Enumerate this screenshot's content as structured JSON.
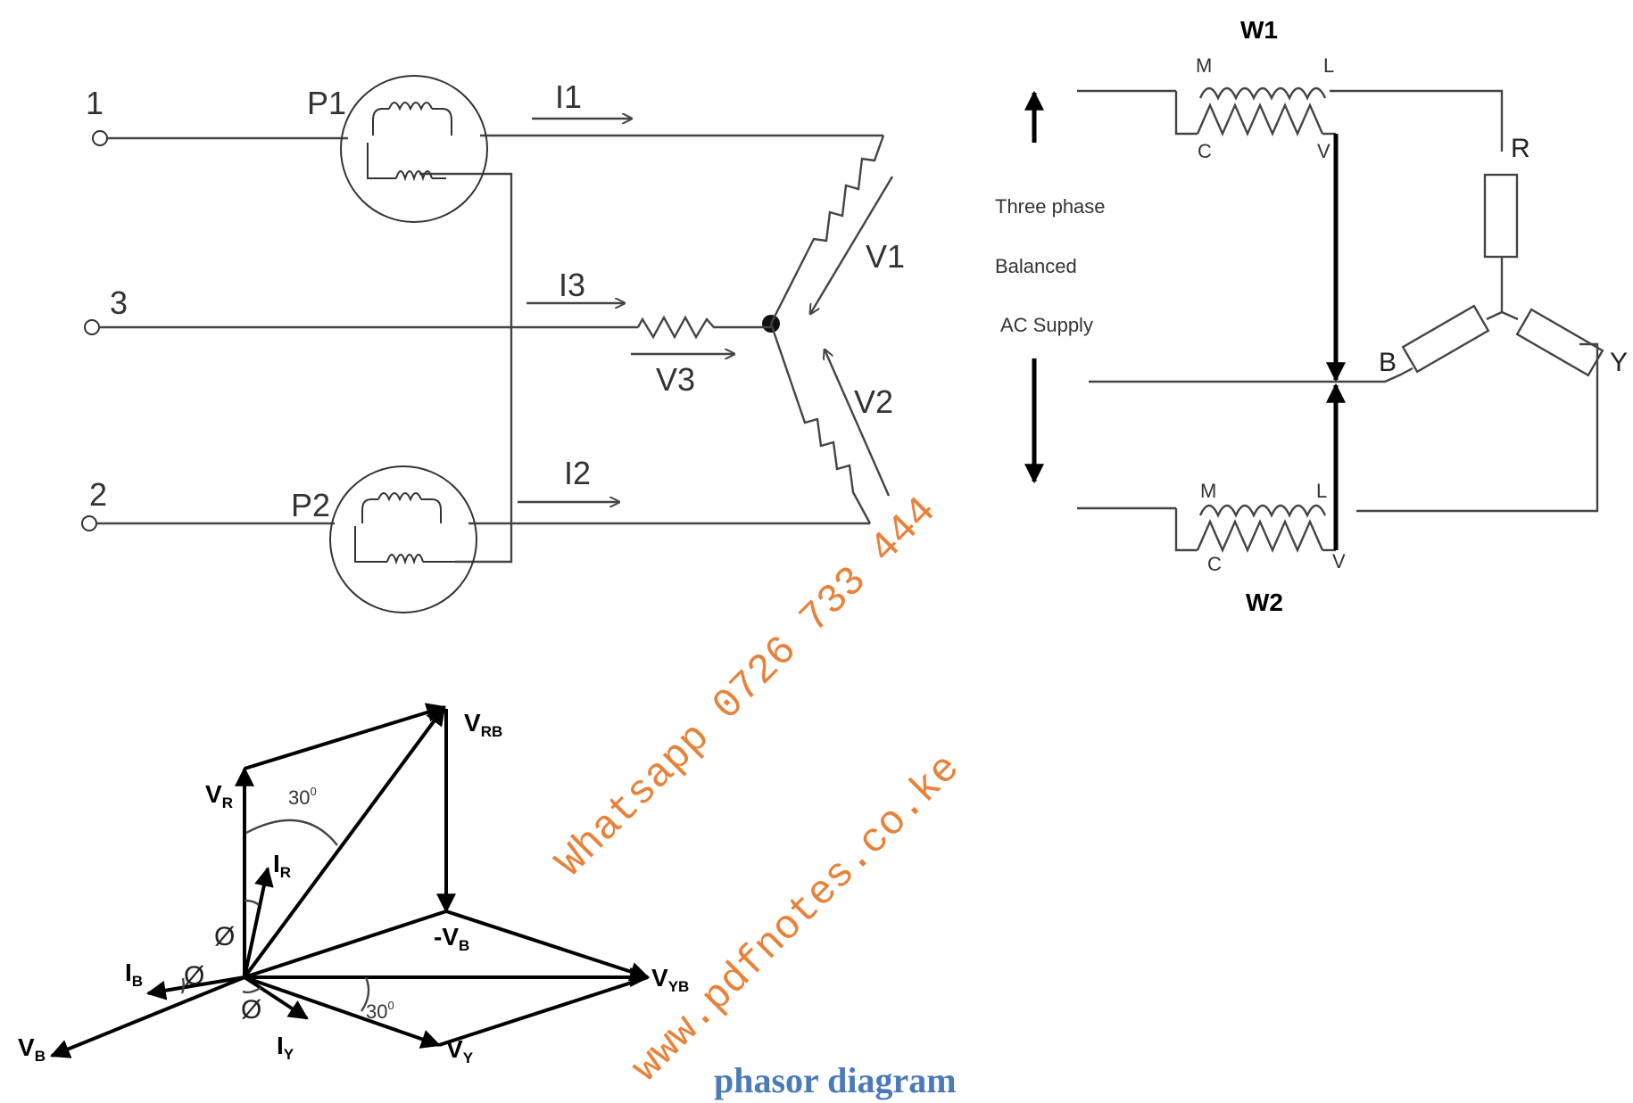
{
  "star_circuit": {
    "terminals": [
      "1",
      "3",
      "2"
    ],
    "meters": [
      "P1",
      "P2"
    ],
    "currents": [
      "I1",
      "I3",
      "I2"
    ],
    "voltages": [
      "V1",
      "V3",
      "V2"
    ]
  },
  "two_wattmeter_circuit": {
    "wattmeter_top": "W1",
    "wattmeter_bottom": "W2",
    "coil_terminals": [
      "M",
      "L",
      "C",
      "V"
    ],
    "supply_lines": [
      "Three phase",
      "Balanced",
      "AC Supply"
    ],
    "load_branches": [
      "R",
      "B",
      "Y"
    ]
  },
  "phasor": {
    "vectors": [
      "VR",
      "VRB",
      "-VB",
      "VYB",
      "VY",
      "VB",
      "IR",
      "IB",
      "IY"
    ],
    "angle_30": "30",
    "phi": "Ø"
  },
  "watermark": {
    "line1": "Whatsapp 0726 733 444",
    "line2": "www.pdfnotes.co.ke"
  },
  "caption": "phasor diagram"
}
